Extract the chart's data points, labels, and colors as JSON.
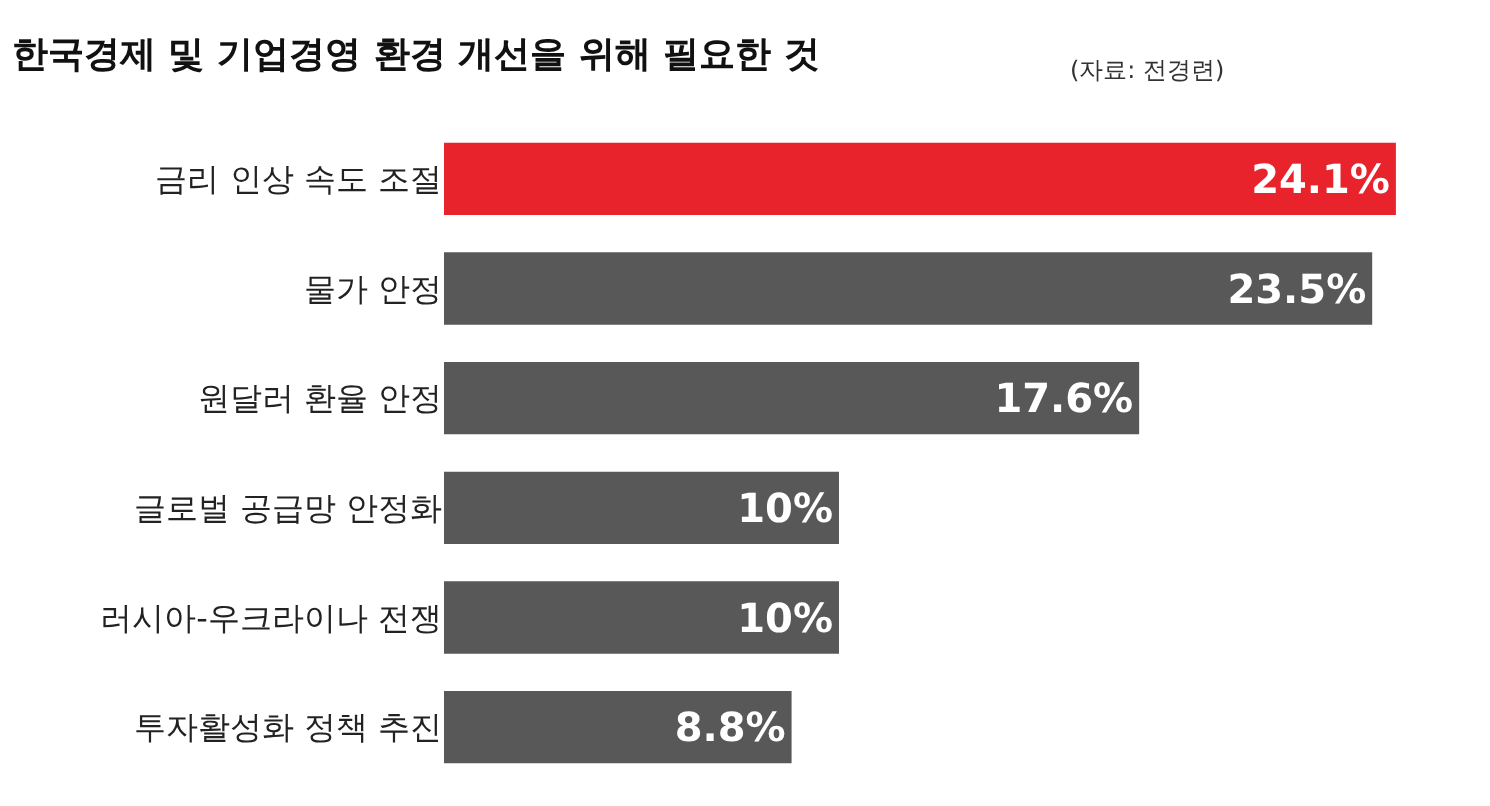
{
  "chart_data": {
    "type": "bar",
    "orientation": "horizontal",
    "title": "한국경제 및 기업경영 환경 개선을 위해 필요한 것",
    "annotations": [
      "(자료: 전경련)"
    ],
    "categories": [
      "금리 인상 속도 조절",
      "물가 안정",
      "원달러 환율 안정",
      "글로벌 공급망 안정화",
      "러시아-우크라이나 전쟁",
      "투자활성화 정책 추진"
    ],
    "values": [
      24.1,
      23.5,
      17.6,
      10,
      10,
      8.8
    ],
    "value_labels": [
      "24.1%",
      "23.5%",
      "17.6%",
      "10%",
      "10%",
      "8.8%"
    ],
    "colors": [
      "#e8232b",
      "#585858",
      "#585858",
      "#585858",
      "#585858",
      "#585858"
    ],
    "tick_labels": "y"
  }
}
